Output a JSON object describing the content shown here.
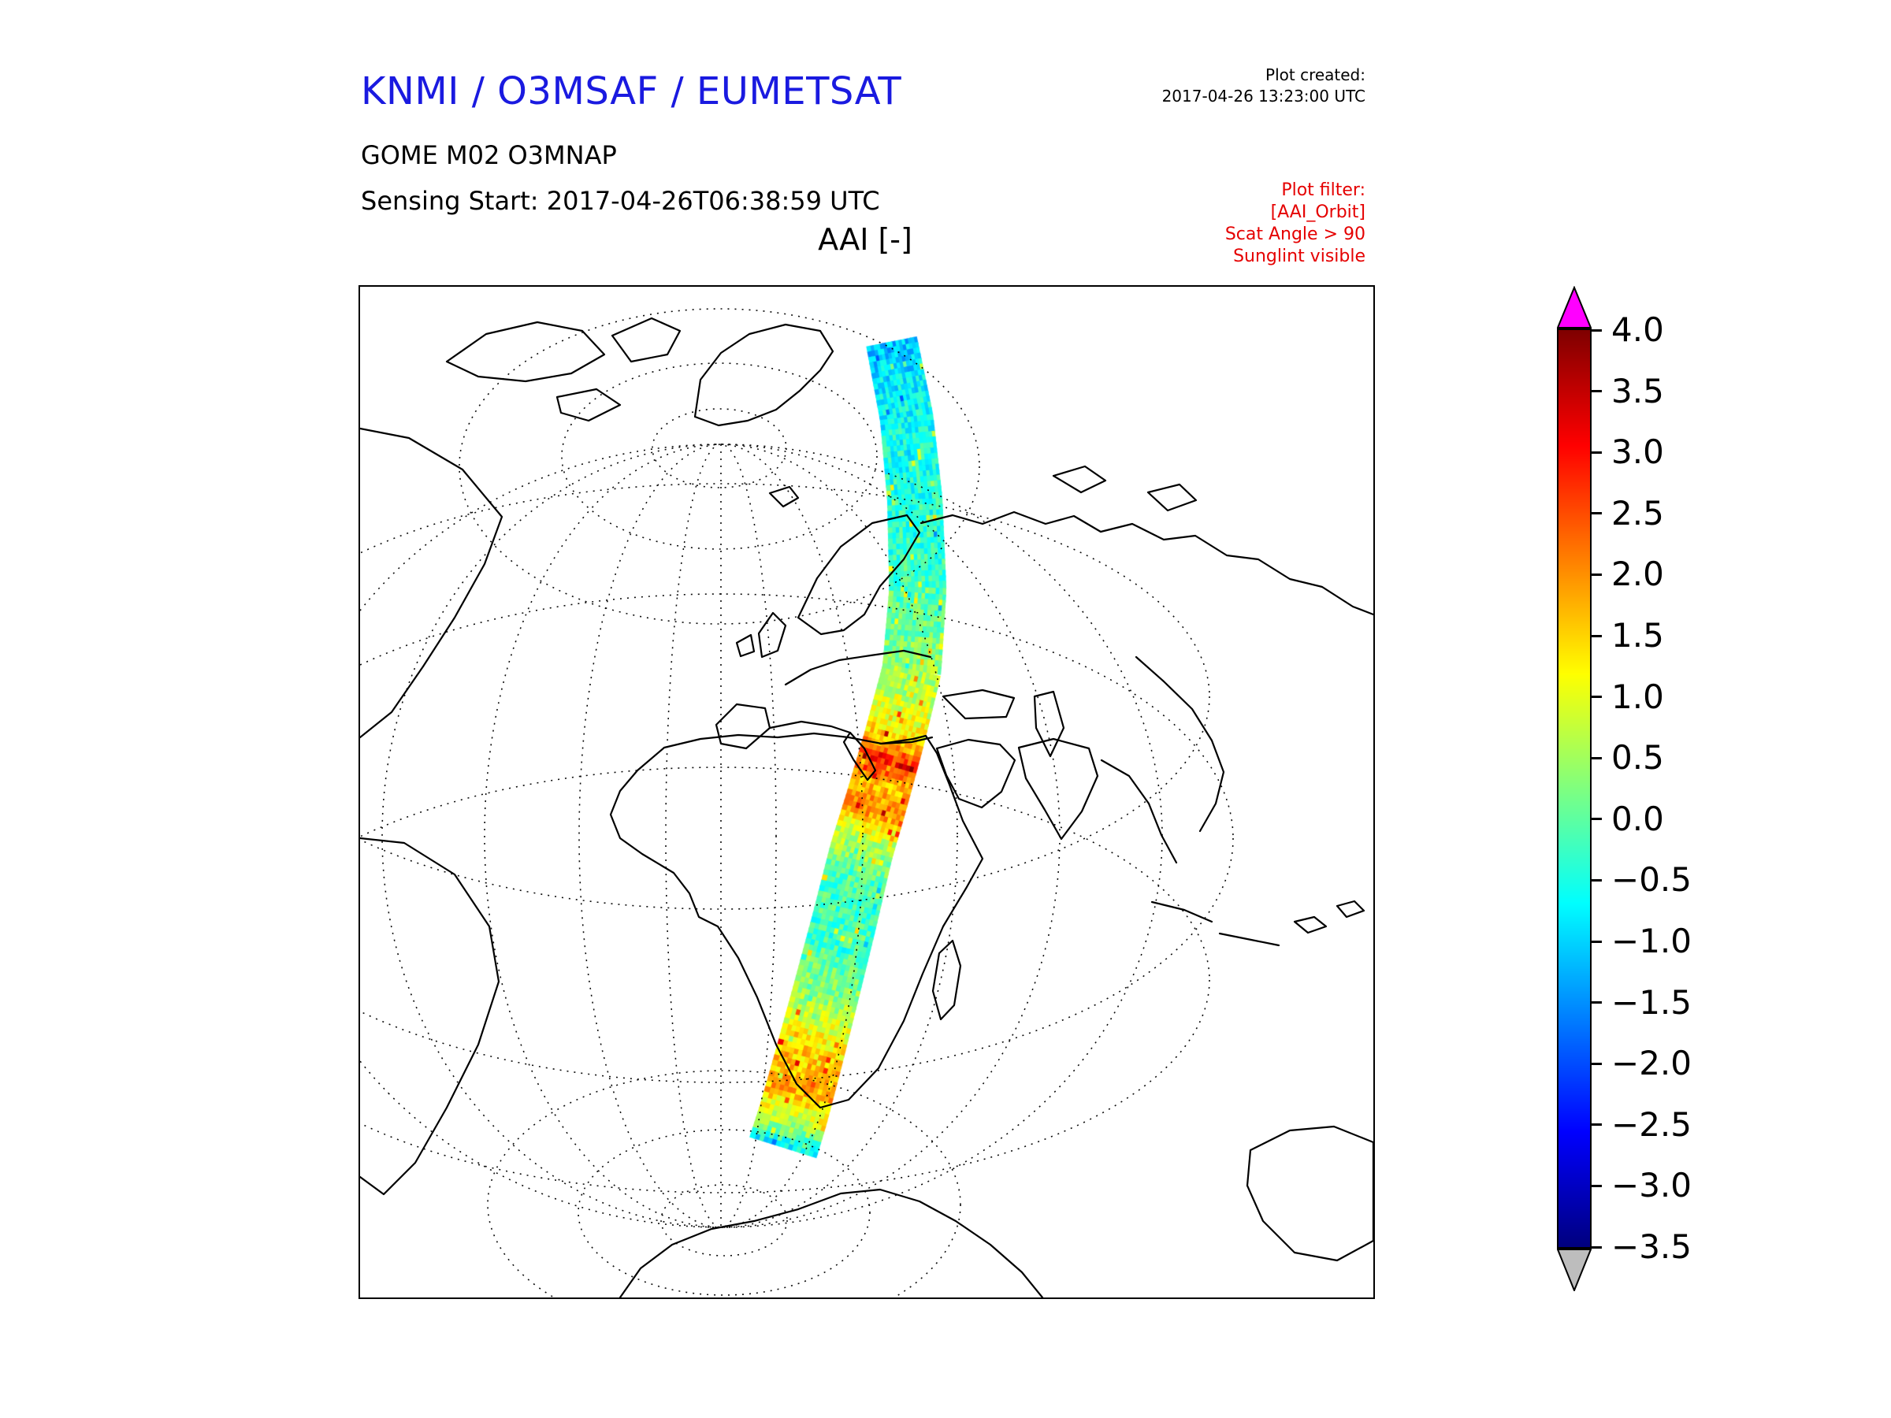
{
  "header": {
    "title": "KNMI / O3MSAF / EUMETSAT",
    "plot_created_label": "Plot created:",
    "plot_created_value": "2017-04-26 13:23:00 UTC",
    "product": "GOME M02 O3MNAP",
    "sensing_start": "Sensing Start: 2017-04-26T06:38:59 UTC"
  },
  "map": {
    "title": "AAI [-]"
  },
  "filter": {
    "lines": [
      "Plot filter:",
      "[AAI_Orbit]",
      "Scat Angle > 90",
      "Sunglint visible"
    ]
  },
  "colors": {
    "title_blue": "#1a1ae0",
    "filter_red": "#e50000",
    "over_color": "#ff00ff",
    "under_color": "#bdbdbd"
  },
  "colorbar": {
    "ticks": [
      "4.0",
      "3.5",
      "3.0",
      "2.5",
      "2.0",
      "1.5",
      "1.0",
      "0.5",
      "0.0",
      "−0.5",
      "−1.0",
      "−1.5",
      "−2.0",
      "−2.5",
      "−3.0",
      "−3.5"
    ]
  },
  "chart_data": {
    "type": "heatmap",
    "title": "AAI [-]",
    "description": "Single GOME-2 (MetOp-A / M02) orbit swath of Absorbing Aerosol Index plotted on a global map view centered on Europe/Africa; the swath runs from the Arctic, across Scandinavia, eastern Europe, northeast Africa and southern Africa down to Antarctica. Mostly values between -1 and +0.5 (cyan/green), with a strong red band (AAI 2.5-3) over Egypt/Sudan and an orange band (AAI 1.5-2) over the Southern Ocean.",
    "colorbar": {
      "colormap": "jet",
      "vmin": -3.5,
      "vmax": 4.0,
      "tick_values": [
        4.0,
        3.5,
        3.0,
        2.5,
        2.0,
        1.5,
        1.0,
        0.5,
        0.0,
        -0.5,
        -1.0,
        -1.5,
        -2.0,
        -2.5,
        -3.0,
        -3.5
      ],
      "over_arrow_color": "#ff00ff",
      "under_arrow_color": "#bdbdbd",
      "legend_position": "right"
    },
    "swath": {
      "centerline_rel": [
        [
          0.525,
          0.054
        ],
        [
          0.54,
          0.13
        ],
        [
          0.548,
          0.21
        ],
        [
          0.551,
          0.3
        ],
        [
          0.545,
          0.38
        ],
        [
          0.527,
          0.45
        ],
        [
          0.51,
          0.51
        ],
        [
          0.495,
          0.56
        ],
        [
          0.478,
          0.63
        ],
        [
          0.46,
          0.7
        ],
        [
          0.443,
          0.765
        ],
        [
          0.428,
          0.82
        ],
        [
          0.418,
          0.852
        ]
      ],
      "width_rel_start": 0.05,
      "width_rel_end": 0.068,
      "value_profile": [
        [
          0.0,
          -1.2
        ],
        [
          0.05,
          -0.8
        ],
        [
          0.15,
          -0.5
        ],
        [
          0.28,
          -0.3
        ],
        [
          0.38,
          0.3
        ],
        [
          0.45,
          0.9
        ],
        [
          0.49,
          1.6
        ],
        [
          0.515,
          2.9
        ],
        [
          0.545,
          1.6
        ],
        [
          0.575,
          2.2
        ],
        [
          0.61,
          0.8
        ],
        [
          0.66,
          -0.1
        ],
        [
          0.74,
          -0.3
        ],
        [
          0.82,
          0.5
        ],
        [
          0.88,
          1.5
        ],
        [
          0.93,
          1.8
        ],
        [
          0.97,
          0.6
        ],
        [
          1.0,
          -0.8
        ]
      ],
      "noise_amplitude": 0.55
    }
  }
}
